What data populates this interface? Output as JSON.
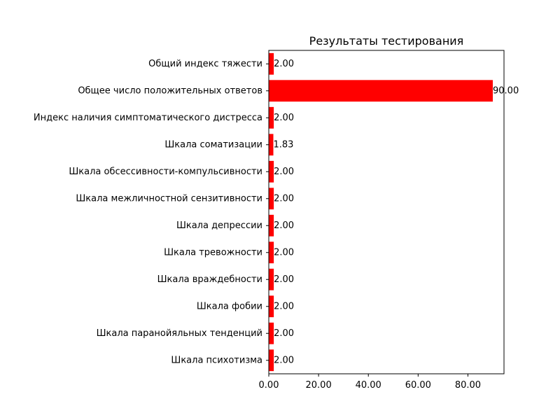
{
  "chart_data": {
    "type": "bar",
    "orientation": "horizontal",
    "title": "Результаты тестирования",
    "xlabel": "",
    "ylabel": "",
    "categories": [
      "Общий индекс тяжести",
      "Общее число положительных ответов",
      "Индекс наличия симптоматического дистресса",
      "Шкала соматизации",
      "Шкала обсессивности-компульсивности",
      "Шкала межличностной сензитивности",
      "Шкала депрессии",
      "Шкала тревожности",
      "Шкала враждебности",
      "Шкала фобии",
      "Шкала паранойяльных тенденций",
      "Шкала психотизма"
    ],
    "values": [
      2.0,
      90.0,
      2.0,
      1.83,
      2.0,
      2.0,
      2.0,
      2.0,
      2.0,
      2.0,
      2.0,
      2.0
    ],
    "value_labels": [
      "2.00",
      "90.00",
      "2.00",
      "1.83",
      "2.00",
      "2.00",
      "2.00",
      "2.00",
      "2.00",
      "2.00",
      "2.00",
      "2.00"
    ],
    "xticks": [
      0,
      20,
      40,
      60,
      80
    ],
    "xtick_labels": [
      "0.00",
      "20.00",
      "40.00",
      "60.00",
      "80.00"
    ],
    "xlim": [
      0,
      94.5
    ],
    "grid": false,
    "bar_color": "#ff0000"
  }
}
